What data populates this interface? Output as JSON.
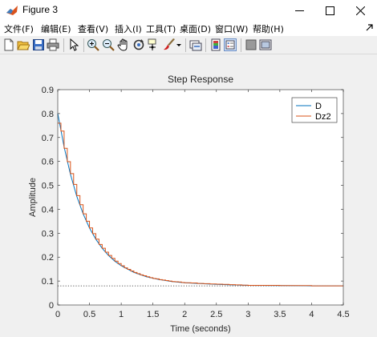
{
  "window": {
    "title": "Figure 3"
  },
  "menu": [
    "文件(F)",
    "编辑(E)",
    "查看(V)",
    "插入(I)",
    "工具(T)",
    "桌面(D)",
    "窗口(W)",
    "帮助(H)"
  ],
  "toolbar": {
    "icons": [
      "new-figure-icon",
      "open-file-icon",
      "save-icon",
      "print-icon",
      "pointer-icon",
      "zoom-in-icon",
      "zoom-out-icon",
      "pan-icon",
      "rotate-icon",
      "data-cursor-icon",
      "brush-icon",
      "link-plot-icon",
      "colorbar-icon",
      "legend-icon",
      "hide-plot-tools-icon",
      "show-plot-tools-icon"
    ]
  },
  "colors": {
    "series_d": "#0072bd",
    "series_dz2": "#d95319",
    "steady": "#222222"
  },
  "chart_data": {
    "type": "line",
    "title": "Step Response",
    "xlabel": "Time (seconds)",
    "ylabel": "Amplitude",
    "xlim": [
      0,
      4.5
    ],
    "ylim": [
      0,
      0.9
    ],
    "xticks": [
      "0",
      "0.5",
      "1",
      "1.5",
      "2",
      "2.5",
      "3",
      "3.5",
      "4",
      "4.5"
    ],
    "yticks": [
      "0",
      "0.1",
      "0.2",
      "0.3",
      "0.4",
      "0.5",
      "0.6",
      "0.7",
      "0.8",
      "0.9"
    ],
    "grid": false,
    "legend_position": "top-right",
    "steady_state": 0.08,
    "sample_time": 0.05,
    "series": [
      {
        "name": "D",
        "style": "continuous",
        "x": [
          0,
          0.1,
          0.2,
          0.3,
          0.4,
          0.5,
          0.6,
          0.7,
          0.8,
          0.9,
          1.0,
          1.2,
          1.4,
          1.6,
          1.8,
          2.0,
          2.5,
          3.0,
          3.5,
          4.0,
          4.5
        ],
        "y": [
          0.8,
          0.661,
          0.546,
          0.454,
          0.381,
          0.322,
          0.275,
          0.237,
          0.207,
          0.183,
          0.164,
          0.136,
          0.118,
          0.106,
          0.098,
          0.093,
          0.086,
          0.082,
          0.081,
          0.08,
          0.08
        ]
      },
      {
        "name": "Dz2",
        "style": "stairs",
        "x": [
          0,
          0.05,
          0.1,
          0.15,
          0.2,
          0.25,
          0.3,
          0.35,
          0.4,
          0.45,
          0.5,
          0.55,
          0.6,
          0.65,
          0.7,
          0.75,
          0.8,
          0.85,
          0.9,
          0.95,
          1.0,
          1.05,
          1.1,
          1.15,
          1.2,
          1.25,
          1.3,
          1.35,
          1.4,
          1.45,
          1.5,
          1.55,
          1.6,
          1.65,
          1.7,
          1.75,
          1.8,
          1.85,
          1.9,
          1.95,
          2.0,
          2.1,
          2.2,
          2.3,
          2.4,
          2.5,
          2.6,
          2.7,
          2.8,
          2.9,
          3.0,
          3.5,
          4.0,
          4.5
        ],
        "y": [
          0.76,
          0.727,
          0.655,
          0.599,
          0.549,
          0.504,
          0.457,
          0.419,
          0.381,
          0.35,
          0.322,
          0.298,
          0.275,
          0.253,
          0.237,
          0.221,
          0.207,
          0.195,
          0.183,
          0.173,
          0.164,
          0.155,
          0.149,
          0.142,
          0.136,
          0.131,
          0.126,
          0.122,
          0.118,
          0.114,
          0.111,
          0.109,
          0.106,
          0.104,
          0.102,
          0.1,
          0.098,
          0.097,
          0.096,
          0.094,
          0.093,
          0.092,
          0.09,
          0.089,
          0.088,
          0.087,
          0.086,
          0.085,
          0.084,
          0.083,
          0.082,
          0.081,
          0.08,
          0.08
        ]
      }
    ]
  }
}
